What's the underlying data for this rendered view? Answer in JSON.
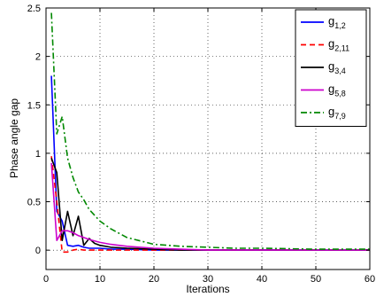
{
  "chart_data": {
    "type": "line",
    "xlabel": "Iterations",
    "ylabel": "Phase angle gap",
    "xlim": [
      0,
      60
    ],
    "ylim": [
      -0.2,
      2.5
    ],
    "xticks": [
      0,
      10,
      20,
      30,
      40,
      50,
      60
    ],
    "yticks": [
      0,
      0.5,
      1,
      1.5,
      2,
      2.5
    ],
    "xtick_labels": [
      "0",
      "10",
      "20",
      "30",
      "40",
      "50",
      "60"
    ],
    "ytick_labels": [
      "0",
      "0.5",
      "1",
      "1.5",
      "2",
      "2.5"
    ],
    "grid": true,
    "legend_position": "top-right",
    "series": [
      {
        "name": "g_{1,2}",
        "label_main": "g",
        "label_sub": "1,2",
        "color": "#0000ff",
        "dash": "solid",
        "x": [
          1,
          2,
          3,
          4,
          5,
          6,
          7,
          8,
          9,
          10,
          12,
          15,
          20,
          25,
          30,
          40,
          50,
          60
        ],
        "y": [
          1.8,
          0.4,
          0.3,
          0.05,
          0.04,
          0.05,
          0.03,
          0.02,
          0.02,
          0.02,
          0.01,
          0.01,
          0.0,
          0.0,
          0.0,
          0.0,
          0.0,
          0.0
        ]
      },
      {
        "name": "g_{2,11}",
        "label_main": "g",
        "label_sub": "2,11",
        "color": "#ff0000",
        "dash": "dashed",
        "x": [
          1,
          2,
          3,
          4,
          5,
          6,
          7,
          8,
          10,
          15,
          20,
          30,
          40,
          50,
          60
        ],
        "y": [
          0.97,
          0.5,
          -0.02,
          -0.02,
          0.0,
          0.01,
          0.0,
          0.0,
          0.0,
          0.0,
          0.0,
          0.0,
          0.0,
          0.0,
          0.0
        ]
      },
      {
        "name": "g_{3,4}",
        "label_main": "g",
        "label_sub": "3,4",
        "color": "#000000",
        "dash": "solid",
        "x": [
          1,
          2,
          3,
          4,
          5,
          6,
          7,
          8,
          9,
          10,
          12,
          15,
          20,
          25,
          30,
          40,
          50,
          60
        ],
        "y": [
          0.95,
          0.8,
          0.1,
          0.4,
          0.15,
          0.35,
          0.05,
          0.12,
          0.07,
          0.05,
          0.03,
          0.02,
          0.01,
          0.0,
          0.0,
          0.0,
          0.0,
          0.0
        ]
      },
      {
        "name": "g_{5,8}",
        "label_main": "g",
        "label_sub": "5,8",
        "color": "#cc00cc",
        "dash": "solid",
        "x": [
          1,
          2,
          3,
          4,
          5,
          6,
          7,
          8,
          10,
          12,
          15,
          20,
          25,
          30,
          40,
          50,
          60
        ],
        "y": [
          0.9,
          0.1,
          0.2,
          0.2,
          0.18,
          0.15,
          0.13,
          0.11,
          0.08,
          0.06,
          0.04,
          0.02,
          0.01,
          0.0,
          0.0,
          0.0,
          0.0
        ]
      },
      {
        "name": "g_{7,9}",
        "label_main": "g",
        "label_sub": "7,9",
        "color": "#008800",
        "dash": "dashdot",
        "x": [
          1,
          2,
          3,
          4,
          5,
          6,
          7,
          8,
          10,
          12,
          15,
          20,
          25,
          30,
          35,
          40,
          50,
          60
        ],
        "y": [
          2.45,
          1.2,
          1.38,
          0.95,
          0.75,
          0.6,
          0.52,
          0.42,
          0.3,
          0.22,
          0.13,
          0.06,
          0.04,
          0.03,
          0.02,
          0.02,
          0.01,
          0.01
        ]
      }
    ]
  }
}
